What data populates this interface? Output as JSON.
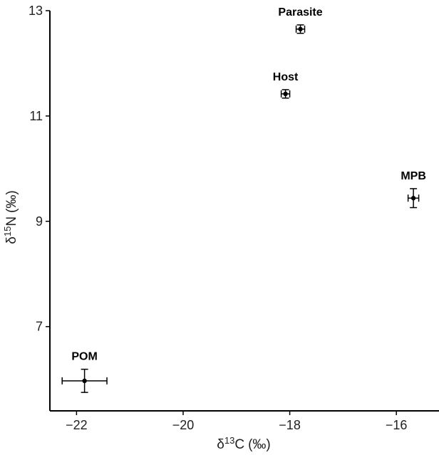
{
  "chart_data": {
    "type": "scatter",
    "title": "",
    "xlabel": {
      "symbol": "δ",
      "superscript": "13",
      "element": "C",
      "unit": "(‰)"
    },
    "ylabel": {
      "symbol": "δ",
      "superscript": "15",
      "element": "N",
      "unit": "(‰)"
    },
    "xlim": [
      -22.5,
      -15.2
    ],
    "ylim": [
      5.4,
      13.0
    ],
    "xticks": [
      -22,
      -20,
      -18,
      -16
    ],
    "yticks": [
      7,
      9,
      11,
      13
    ],
    "xtick_labels": [
      "−22",
      "−20",
      "−18",
      "−16"
    ],
    "ytick_labels": [
      "7",
      "9",
      "11",
      "13"
    ],
    "grid": false,
    "points": [
      {
        "label": "Parasite",
        "x": -17.8,
        "y": 12.65,
        "xerr": 0.08,
        "yerr": 0.08
      },
      {
        "label": "Host",
        "x": -18.08,
        "y": 11.42,
        "xerr": 0.08,
        "yerr": 0.08
      },
      {
        "label": "MPB",
        "x": -15.68,
        "y": 9.44,
        "xerr": 0.1,
        "yerr": 0.18
      },
      {
        "label": "POM",
        "x": -21.85,
        "y": 5.97,
        "xerr": 0.42,
        "yerr": 0.22
      }
    ],
    "colors": {
      "points": "#000000",
      "axes": "#000000",
      "text": "#222222"
    }
  }
}
